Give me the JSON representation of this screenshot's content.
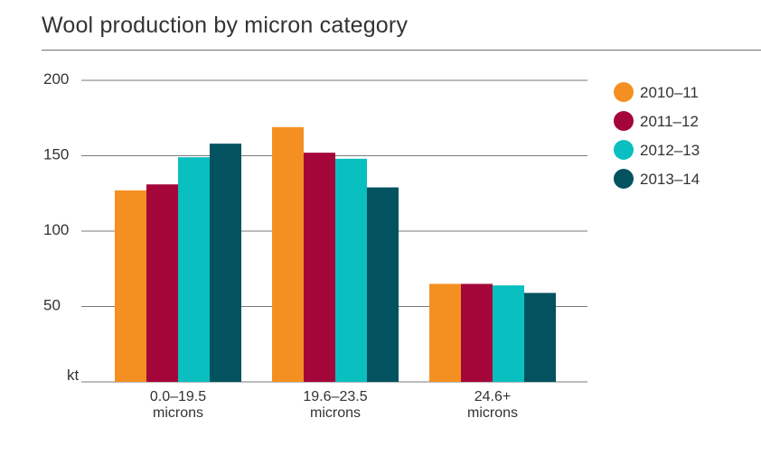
{
  "chart_data": {
    "type": "bar",
    "title": "Wool production by micron category",
    "ylabel": "kt",
    "ylim": [
      0,
      200
    ],
    "yticks": [
      50,
      100,
      150,
      200
    ],
    "grid": true,
    "legend_position": "right",
    "categories": [
      "0.0–19.5 microns",
      "19.6–23.5 microns",
      "24.6+ microns"
    ],
    "category_lines": [
      [
        "0.0–19.5",
        "microns"
      ],
      [
        "19.6–23.5",
        "microns"
      ],
      [
        "24.6+",
        "microns"
      ]
    ],
    "series": [
      {
        "name": "2010–11",
        "color": "#f39021",
        "values": [
          127,
          169,
          65
        ]
      },
      {
        "name": "2011–12",
        "color": "#a5063a",
        "values": [
          131,
          152,
          65
        ]
      },
      {
        "name": "2012–13",
        "color": "#0abfbf",
        "values": [
          149,
          148,
          64
        ]
      },
      {
        "name": "2013–14",
        "color": "#02525f",
        "values": [
          158,
          129,
          59
        ]
      }
    ]
  }
}
